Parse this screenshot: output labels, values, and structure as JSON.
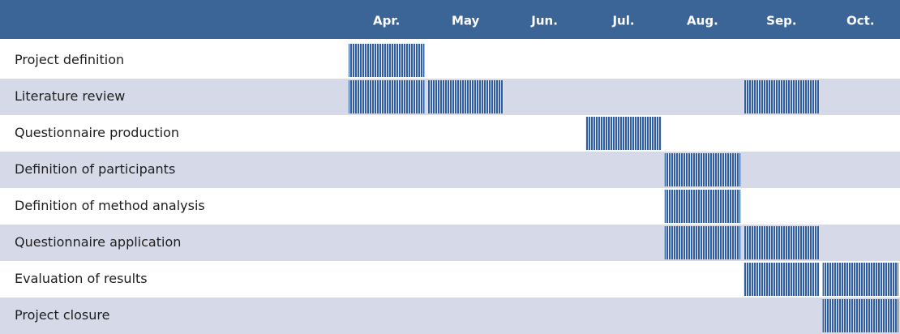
{
  "table": {
    "months": [
      "Apr.",
      "May",
      "Jun.",
      "Jul.",
      "Aug.",
      "Sep.",
      "Oct."
    ],
    "rows": [
      {
        "task": "Project definition",
        "active": [
          true,
          false,
          false,
          false,
          false,
          false,
          false
        ]
      },
      {
        "task": "Literature review",
        "active": [
          true,
          true,
          false,
          false,
          false,
          true,
          false
        ]
      },
      {
        "task": "Questionnaire production",
        "active": [
          false,
          false,
          false,
          true,
          false,
          false,
          false
        ]
      },
      {
        "task": "Definition of participants",
        "active": [
          false,
          false,
          false,
          false,
          true,
          false,
          false
        ]
      },
      {
        "task": "Definition of method analysis",
        "active": [
          false,
          false,
          false,
          false,
          true,
          false,
          false
        ]
      },
      {
        "task": "Questionnaire application",
        "active": [
          false,
          false,
          false,
          false,
          true,
          true,
          false
        ]
      },
      {
        "task": "Evaluation of results",
        "active": [
          false,
          false,
          false,
          false,
          false,
          true,
          true
        ]
      },
      {
        "task": "Project closure",
        "active": [
          false,
          false,
          false,
          false,
          false,
          false,
          true
        ]
      }
    ]
  }
}
